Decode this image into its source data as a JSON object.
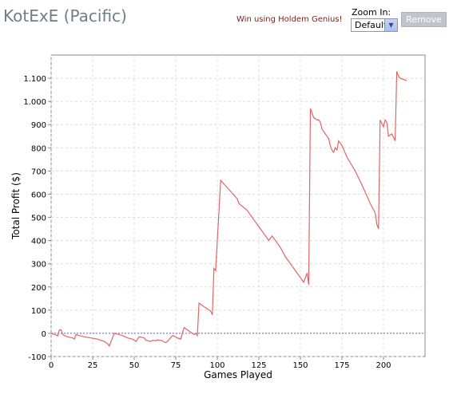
{
  "header": {
    "player": "KotExE (Pacific)",
    "promo": "Win using Holdem Genius!",
    "zoom_label": "Zoom In:",
    "zoom_value": "Default",
    "remove_label": "Remove"
  },
  "chart_data": {
    "type": "line",
    "xlabel": "Games Played",
    "ylabel": "Total Profit ($)",
    "xlim": [
      0,
      225
    ],
    "ylim": [
      -100,
      1200
    ],
    "x_ticks": [
      0,
      25,
      50,
      75,
      100,
      125,
      150,
      175,
      200
    ],
    "y_ticks": [
      -100,
      0,
      100,
      200,
      300,
      400,
      500,
      600,
      700,
      800,
      900,
      1000,
      1100
    ],
    "y_tick_labels": [
      "-100",
      "0",
      "100",
      "200",
      "300",
      "400",
      "500",
      "600",
      "700",
      "800",
      "900",
      "1.000",
      "1.100"
    ],
    "grid": true,
    "zero_line": true,
    "colors": {
      "line": "#e06666",
      "zero": "#6666cc",
      "grid": "#dcdcdc",
      "axis": "#888888"
    },
    "series": [
      {
        "x": [
          0,
          4,
          5,
          6,
          7,
          8,
          10,
          13,
          14,
          15,
          17,
          20,
          24,
          28,
          32,
          34,
          35,
          38,
          41,
          43,
          46,
          49,
          50,
          51,
          53,
          56,
          57,
          60,
          61,
          63,
          64,
          67,
          68,
          69,
          70,
          73,
          74,
          75,
          76,
          78,
          80,
          82,
          84,
          86,
          87,
          88,
          89,
          92,
          95,
          96,
          97,
          98,
          99,
          102,
          107,
          112,
          113,
          118,
          123,
          128,
          131,
          133,
          138,
          141,
          143,
          146,
          149,
          152,
          154,
          155,
          156,
          157,
          158,
          160,
          161,
          162,
          163,
          165,
          167,
          168,
          169,
          170,
          171,
          172,
          173,
          175,
          178,
          183,
          187,
          192,
          195,
          196,
          197,
          198,
          200,
          201,
          202,
          203,
          205,
          207,
          208,
          209,
          210,
          214
        ],
        "y": [
          0,
          -10,
          15,
          15,
          -5,
          -10,
          -15,
          -20,
          -25,
          -5,
          -10,
          -15,
          -20,
          -25,
          -35,
          -45,
          -55,
          0,
          -5,
          -10,
          -20,
          -25,
          -30,
          -35,
          -15,
          -20,
          -30,
          -35,
          -30,
          -32,
          -28,
          -32,
          -38,
          -40,
          -35,
          -10,
          -12,
          -15,
          -20,
          -25,
          25,
          15,
          5,
          -5,
          0,
          -10,
          130,
          115,
          100,
          95,
          80,
          280,
          270,
          660,
          620,
          580,
          560,
          530,
          480,
          430,
          400,
          420,
          370,
          330,
          310,
          280,
          250,
          220,
          260,
          210,
          970,
          950,
          930,
          920,
          920,
          910,
          880,
          860,
          840,
          810,
          790,
          780,
          800,
          790,
          830,
          810,
          760,
          700,
          640,
          560,
          520,
          470,
          450,
          920,
          890,
          920,
          910,
          850,
          860,
          830,
          1130,
          1110,
          1100,
          1090
        ]
      }
    ]
  }
}
